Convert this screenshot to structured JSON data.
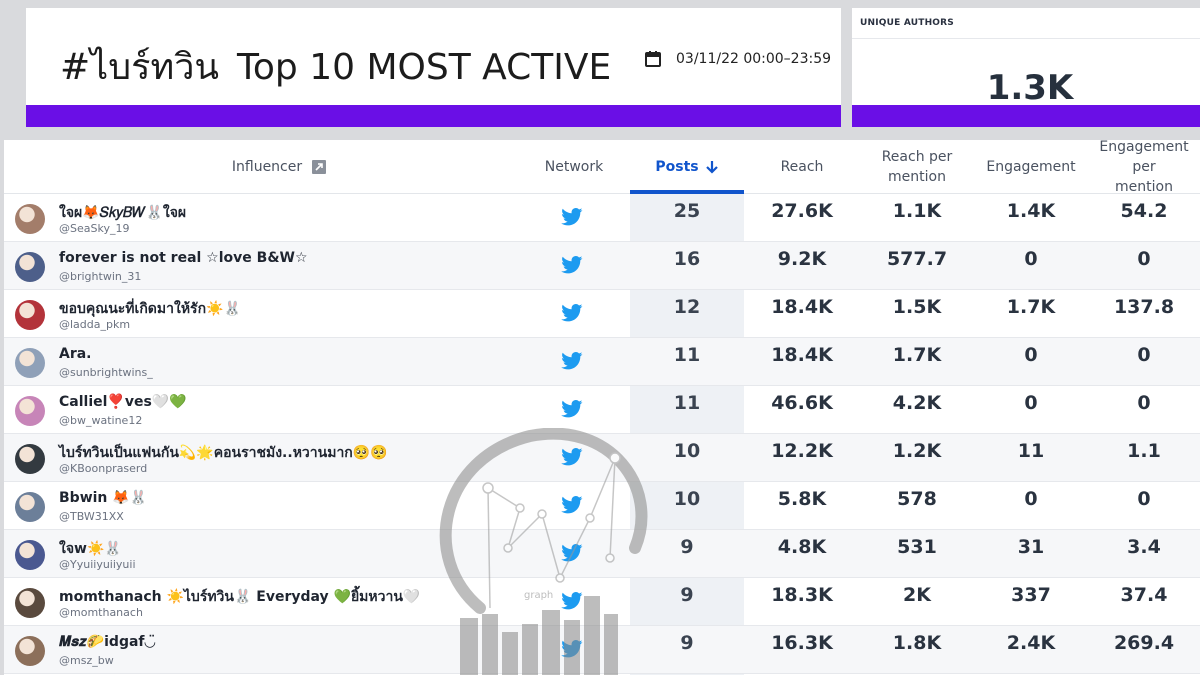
{
  "header": {
    "hashtag": "#ไบร์ทวิน",
    "title": "Top 10 MOST ACTIVE",
    "date_range": "03/11/22 00:00–23:59",
    "accent_color": "#6a0fe6"
  },
  "unique_authors": {
    "label": "UNIQUE AUTHORS",
    "value": "1.3K"
  },
  "table": {
    "columns": {
      "influencer": "Influencer",
      "network": "Network",
      "posts": "Posts",
      "reach": "Reach",
      "reach_per_mention_1": "Reach per",
      "reach_per_mention_2": "mention",
      "engagement": "Engagement",
      "engagement_per_mention_1": "Engagement per",
      "engagement_per_mention_2": "mention"
    },
    "sort_icon": "arrow-down-icon",
    "rows": [
      {
        "name": "ใจผ🦊𝑆𝑘𝑦𝐵𝑊🐰ใจผ",
        "handle": "@SeaSky_19",
        "network": "twitter-icon",
        "posts": "25",
        "reach": "27.6K",
        "reach_per_mention": "1.1K",
        "engagement": "1.4K",
        "engagement_per_mention": "54.2",
        "avatar_color": "#a37d6a"
      },
      {
        "name": "forever is not real ☆love B&W☆",
        "handle": "@brightwin_31",
        "network": "twitter-icon",
        "posts": "16",
        "reach": "9.2K",
        "reach_per_mention": "577.7",
        "engagement": "0",
        "engagement_per_mention": "0",
        "avatar_color": "#4d5f8a"
      },
      {
        "name": "ขอบคุณนะที่เกิดมาให้รัก☀️🐰",
        "handle": "@ladda_pkm",
        "network": "twitter-icon",
        "posts": "12",
        "reach": "18.4K",
        "reach_per_mention": "1.5K",
        "engagement": "1.7K",
        "engagement_per_mention": "137.8",
        "avatar_color": "#b3333a"
      },
      {
        "name": "Ara.",
        "handle": "@sunbrightwins_",
        "network": "twitter-icon",
        "posts": "11",
        "reach": "18.4K",
        "reach_per_mention": "1.7K",
        "engagement": "0",
        "engagement_per_mention": "0",
        "avatar_color": "#8fa0b8"
      },
      {
        "name": "Calliel❣️ves🤍💚",
        "handle": "@bw_watine12",
        "network": "twitter-icon",
        "posts": "11",
        "reach": "46.6K",
        "reach_per_mention": "4.2K",
        "engagement": "0",
        "engagement_per_mention": "0",
        "avatar_color": "#c785b8"
      },
      {
        "name": "ไบร์ทวินเป็นแฟนกัน💫🌟คอนราชมัง..หวานมาก🥺🥺",
        "handle": "@KBoonpraserd",
        "network": "twitter-icon",
        "posts": "10",
        "reach": "12.2K",
        "reach_per_mention": "1.2K",
        "engagement": "11",
        "engagement_per_mention": "1.1",
        "avatar_color": "#333a40"
      },
      {
        "name": "Bbwin 🦊🐰",
        "handle": "@TBW31XX",
        "network": "twitter-icon",
        "posts": "10",
        "reach": "5.8K",
        "reach_per_mention": "578",
        "engagement": "0",
        "engagement_per_mention": "0",
        "avatar_color": "#6c7f99"
      },
      {
        "name": "ใจw☀️🐰",
        "handle": "@Yyuiiyuiiyuii",
        "network": "twitter-icon",
        "posts": "9",
        "reach": "4.8K",
        "reach_per_mention": "531",
        "engagement": "31",
        "engagement_per_mention": "3.4",
        "avatar_color": "#4a5890"
      },
      {
        "name": "momthanach ☀️ไบร์ทวิน🐰 Everyday 💚ยิ้มหวาน🤍",
        "handle": "@momthanach",
        "network": "twitter-icon",
        "posts": "9",
        "reach": "18.3K",
        "reach_per_mention": "2K",
        "engagement": "337",
        "engagement_per_mention": "37.4",
        "avatar_color": "#5a4a3e"
      },
      {
        "name": "𝑴𝒔𝒛🌮idgaf◡̈",
        "handle": "@msz_bw",
        "network": "twitter-icon",
        "posts": "9",
        "reach": "16.3K",
        "reach_per_mention": "1.8K",
        "engagement": "2.4K",
        "engagement_per_mention": "269.4",
        "avatar_color": "#8c6f5a"
      }
    ]
  },
  "watermark_label": "graph"
}
